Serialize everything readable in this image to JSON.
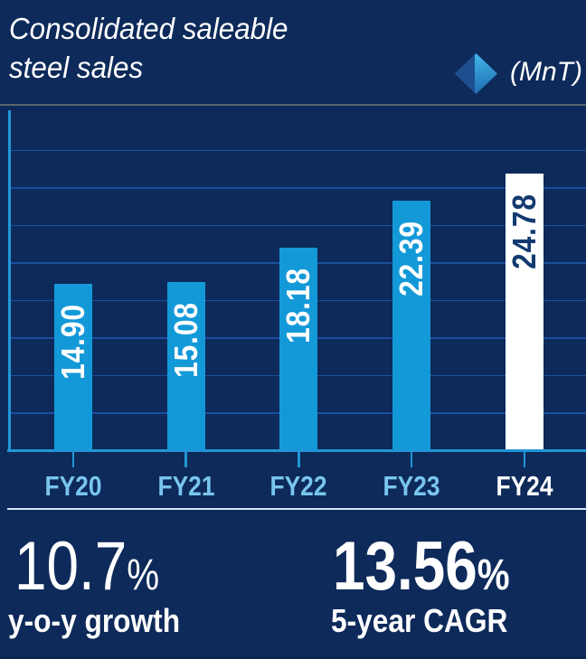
{
  "title": {
    "line1": "Consolidated saleable",
    "line2": "steel sales"
  },
  "legend": {
    "icon": "diamond-icon",
    "unit_label": "(MnT)"
  },
  "chart_data": {
    "type": "bar",
    "title": "Consolidated saleable steel sales",
    "unit": "MnT",
    "categories": [
      "FY20",
      "FY21",
      "FY22",
      "FY23",
      "FY24"
    ],
    "values": [
      14.9,
      15.08,
      18.18,
      22.39,
      24.78
    ],
    "value_labels": [
      "14.90",
      "15.08",
      "18.18",
      "22.39",
      "24.78"
    ],
    "highlight_index": 4,
    "ylim": [
      0,
      30.4
    ],
    "grid": "horizontal",
    "legend_position": "top-right",
    "value_label_orientation": "vertical-inside-bar"
  },
  "stats": [
    {
      "value": "10.7",
      "pct": "%",
      "label": "y-o-y growth",
      "emphasis": "light"
    },
    {
      "value": "13.56",
      "pct": "%",
      "label": "5-year CAGR",
      "emphasis": "bold"
    }
  ],
  "colors": {
    "background": "#0d2a5a",
    "bar": "#1499d8",
    "highlight_bar": "#ffffff",
    "value_text": "#ffffff",
    "value_text_on_highlight": "#123a70",
    "axis": "#2196d6",
    "gridline": "#1b4f9f",
    "category_label": "#79c5ee",
    "category_label_highlight": "#ffffff",
    "title_divider": "#5a646e",
    "stats_divider": "#d5e7f4",
    "diamond_dark": "#1d4e90",
    "diamond_light": "#41b1e6",
    "diamond_light_deep": "#1e6cb0"
  }
}
